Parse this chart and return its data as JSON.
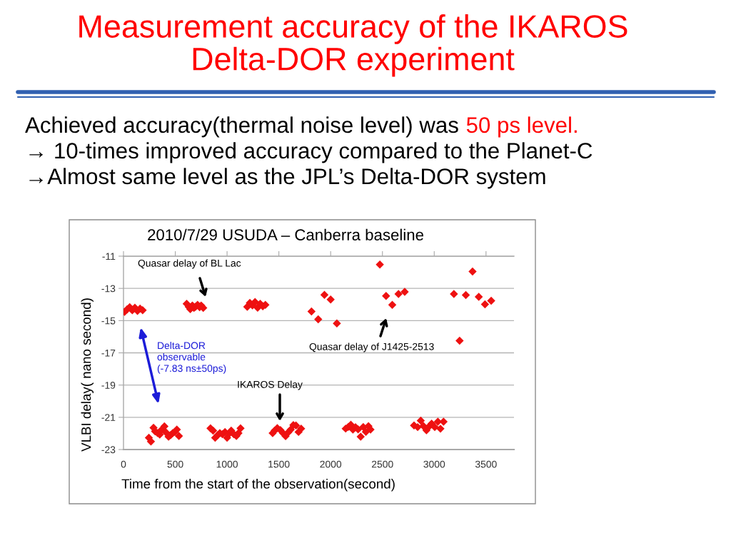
{
  "chart_data": {
    "type": "scatter",
    "title": "Measurement accuracy of the IKAROS\nDelta-DOR experiment",
    "subtitle": "2010/7/29 USUDA – Canberra baseline",
    "xlabel": "Time from the start of the observation(second)",
    "ylabel": "VLBI delay( nano second)",
    "annotations": [
      "Achieved accuracy(thermal noise level) was",
      "50 ps level.",
      "→ 10-times improved accuracy compared to the Planet-C",
      "→Almost same level as the JPL’s Delta-DOR system",
      "Quasar delay of BL Lac",
      "Delta-DOR\nobservable\n(-7.83 ns±50ps)",
      "IKAROS Delay",
      "Quasar delay of J1425-2513"
    ],
    "series": [
      {
        "color": "#ee1111",
        "x": [
          10,
          35,
          60,
          85,
          110,
          135,
          160,
          185,
          245,
          265,
          290,
          305,
          330,
          350,
          370,
          395,
          410,
          435,
          455,
          475,
          495,
          515,
          535,
          610,
          630,
          645,
          665,
          680,
          695,
          715,
          735,
          750,
          770,
          840,
          865,
          885,
          910,
          930,
          955,
          980,
          1000,
          1025,
          1040,
          1065,
          1090,
          1110,
          1130,
          1195,
          1220,
          1245,
          1270,
          1295,
          1320,
          1345,
          1370,
          1440,
          1460,
          1485,
          1515,
          1540,
          1565,
          1590,
          1615,
          1640,
          1665,
          1690,
          1715,
          1815,
          1880,
          1940,
          2000,
          2060,
          2145,
          2170,
          2195,
          2215,
          2240,
          2265,
          2290,
          2315,
          2340,
          2365,
          2385,
          2475,
          2535,
          2595,
          2655,
          2715,
          2805,
          2840,
          2870,
          2895,
          2925,
          2955,
          2975,
          3005,
          3035,
          3060,
          3090,
          3190,
          3245,
          3305,
          3370,
          3430,
          3490,
          3550
        ],
        "values": [
          -14.46,
          -14.3,
          -14.17,
          -14.36,
          -14.2,
          -14.4,
          -14.25,
          -14.35,
          -22.27,
          -22.5,
          -21.65,
          -21.87,
          -21.98,
          -22.07,
          -21.76,
          -21.56,
          -21.94,
          -22.2,
          -22.1,
          -21.98,
          -21.91,
          -21.76,
          -22.16,
          -13.96,
          -14.14,
          -14.29,
          -14.06,
          -14.21,
          -14.14,
          -14.02,
          -14.17,
          -14.06,
          -14.21,
          -21.68,
          -21.83,
          -22.27,
          -22.1,
          -21.98,
          -22.05,
          -21.91,
          -22.27,
          -21.98,
          -21.83,
          -22.05,
          -22.16,
          -21.98,
          -21.68,
          -14.14,
          -13.9,
          -14.06,
          -13.84,
          -14.2,
          -13.96,
          -14.11,
          -14.02,
          -21.98,
          -21.82,
          -21.67,
          -21.79,
          -21.98,
          -22.17,
          -21.94,
          -21.76,
          -21.48,
          -21.51,
          -21.91,
          -21.7,
          -14.43,
          -14.92,
          -13.4,
          -13.69,
          -15.17,
          -21.7,
          -21.6,
          -21.46,
          -21.76,
          -21.62,
          -21.75,
          -22.2,
          -21.6,
          -21.9,
          -21.55,
          -21.76,
          -11.52,
          -13.47,
          -14.02,
          -13.35,
          -13.21,
          -21.51,
          -21.61,
          -21.21,
          -21.54,
          -21.8,
          -21.54,
          -21.39,
          -21.61,
          -21.27,
          -21.71,
          -21.27,
          -13.35,
          -16.25,
          -13.41,
          -11.95,
          -13.52,
          -13.99,
          -13.77
        ]
      }
    ],
    "marker": "diamond",
    "xlim": [
      0,
      3770
    ],
    "xticks": [
      0,
      500,
      1000,
      1500,
      2000,
      2500,
      3000,
      3500
    ],
    "ylim": [
      -23,
      -11
    ],
    "yticks": [
      -11,
      -13,
      -15,
      -17,
      -19,
      -21,
      -23
    ],
    "grid": "y"
  }
}
